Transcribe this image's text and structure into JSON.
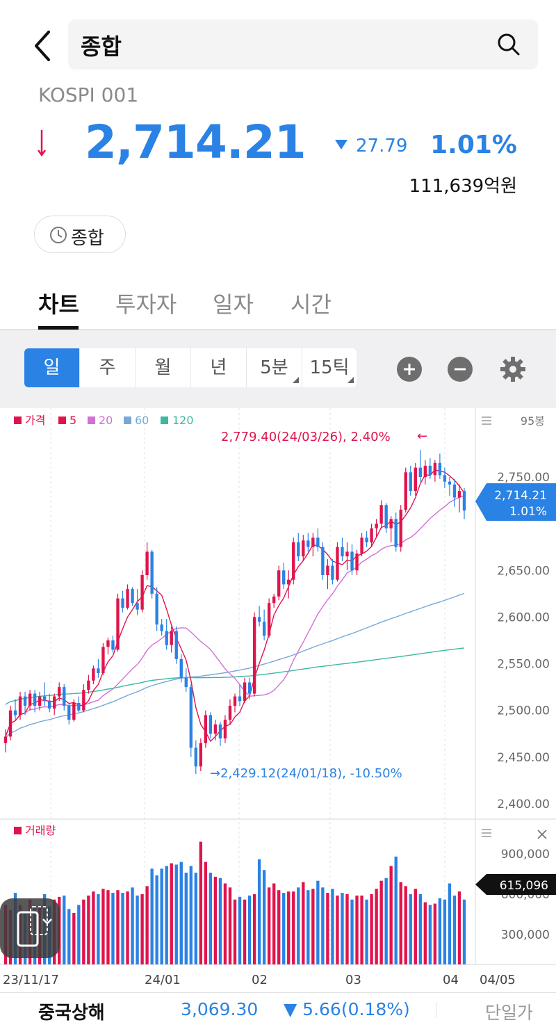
{
  "header": {
    "search_text": "종합"
  },
  "index": {
    "code": "KOSPI 001",
    "price": "2,714.21",
    "change": "27.79",
    "change_pct": "1.01%",
    "trade_amount": "111,639억원",
    "market_chip": "종합"
  },
  "tabs": [
    {
      "label": "차트",
      "active": true
    },
    {
      "label": "투자자",
      "active": false
    },
    {
      "label": "일자",
      "active": false
    },
    {
      "label": "시간",
      "active": false
    }
  ],
  "periods": [
    {
      "label": "일",
      "active": true
    },
    {
      "label": "주"
    },
    {
      "label": "월"
    },
    {
      "label": "년"
    },
    {
      "label": "5분",
      "has_menu": true
    },
    {
      "label": "15틱",
      "has_menu": true
    }
  ],
  "colors": {
    "up": "#e0144c",
    "down": "#2a82e4",
    "ma5": "#e0144c",
    "ma20": "#d070d8",
    "ma60": "#78a8d6",
    "ma120": "#3cb8a0"
  },
  "chart_data": {
    "type": "candlestick",
    "legend": [
      "가격",
      "5",
      "20",
      "60",
      "120"
    ],
    "candle_count_label": "95봉",
    "price_axis": {
      "ticks": [
        "2,750.00",
        "2,650.00",
        "2,600.00",
        "2,550.00",
        "2,500.00",
        "2,450.00",
        "2,400.00"
      ],
      "range": [
        2400,
        2780
      ]
    },
    "current": {
      "price": "2,714.21",
      "pct": "1.01%"
    },
    "high_annotation": "2,779.40(24/03/26), 2.40%",
    "low_annotation": "2,429.12(24/01/18), -10.50%",
    "x_labels": [
      "23/11/17",
      "24/01",
      "02",
      "03",
      "04",
      "04/05"
    ],
    "volume_panel": {
      "label": "거래량",
      "ticks": [
        "900,000",
        "600,000",
        "300,000"
      ],
      "current": "615,096"
    },
    "candles": [
      [
        2465,
        2480,
        2455,
        2472
      ],
      [
        2472,
        2505,
        2468,
        2500
      ],
      [
        2500,
        2512,
        2490,
        2495
      ],
      [
        2495,
        2520,
        2490,
        2515
      ],
      [
        2515,
        2520,
        2495,
        2505
      ],
      [
        2505,
        2522,
        2500,
        2518
      ],
      [
        2518,
        2522,
        2498,
        2505
      ],
      [
        2505,
        2520,
        2500,
        2515
      ],
      [
        2515,
        2530,
        2505,
        2510
      ],
      [
        2510,
        2518,
        2498,
        2502
      ],
      [
        2502,
        2518,
        2495,
        2515
      ],
      [
        2515,
        2530,
        2510,
        2525
      ],
      [
        2525,
        2528,
        2500,
        2505
      ],
      [
        2505,
        2508,
        2485,
        2490
      ],
      [
        2490,
        2512,
        2488,
        2508
      ],
      [
        2508,
        2515,
        2498,
        2500
      ],
      [
        2500,
        2528,
        2498,
        2522
      ],
      [
        2522,
        2538,
        2518,
        2532
      ],
      [
        2532,
        2548,
        2528,
        2545
      ],
      [
        2545,
        2555,
        2535,
        2540
      ],
      [
        2540,
        2572,
        2538,
        2568
      ],
      [
        2568,
        2578,
        2560,
        2575
      ],
      [
        2575,
        2580,
        2562,
        2565
      ],
      [
        2565,
        2625,
        2563,
        2620
      ],
      [
        2620,
        2628,
        2605,
        2610
      ],
      [
        2610,
        2635,
        2608,
        2630
      ],
      [
        2630,
        2632,
        2612,
        2615
      ],
      [
        2615,
        2630,
        2602,
        2608
      ],
      [
        2608,
        2650,
        2605,
        2645
      ],
      [
        2645,
        2680,
        2640,
        2670
      ],
      [
        2670,
        2672,
        2620,
        2625
      ],
      [
        2625,
        2632,
        2585,
        2592
      ],
      [
        2592,
        2598,
        2580,
        2585
      ],
      [
        2585,
        2598,
        2565,
        2570
      ],
      [
        2570,
        2590,
        2562,
        2585
      ],
      [
        2585,
        2590,
        2550,
        2555
      ],
      [
        2555,
        2560,
        2530,
        2535
      ],
      [
        2535,
        2545,
        2520,
        2525
      ],
      [
        2525,
        2528,
        2450,
        2460
      ],
      [
        2460,
        2468,
        2432,
        2440
      ],
      [
        2440,
        2470,
        2435,
        2465
      ],
      [
        2465,
        2500,
        2460,
        2495
      ],
      [
        2495,
        2498,
        2470,
        2475
      ],
      [
        2475,
        2490,
        2468,
        2485
      ],
      [
        2485,
        2488,
        2462,
        2470
      ],
      [
        2470,
        2495,
        2465,
        2490
      ],
      [
        2490,
        2512,
        2485,
        2505
      ],
      [
        2505,
        2518,
        2498,
        2515
      ],
      [
        2515,
        2528,
        2505,
        2510
      ],
      [
        2510,
        2535,
        2508,
        2530
      ],
      [
        2530,
        2535,
        2512,
        2518
      ],
      [
        2518,
        2605,
        2515,
        2600
      ],
      [
        2600,
        2612,
        2590,
        2595
      ],
      [
        2595,
        2608,
        2575,
        2580
      ],
      [
        2580,
        2620,
        2578,
        2615
      ],
      [
        2615,
        2625,
        2610,
        2622
      ],
      [
        2622,
        2655,
        2618,
        2650
      ],
      [
        2650,
        2658,
        2630,
        2635
      ],
      [
        2635,
        2650,
        2620,
        2640
      ],
      [
        2640,
        2685,
        2635,
        2680
      ],
      [
        2680,
        2690,
        2660,
        2665
      ],
      [
        2665,
        2688,
        2660,
        2682
      ],
      [
        2682,
        2690,
        2670,
        2675
      ],
      [
        2675,
        2690,
        2665,
        2685
      ],
      [
        2685,
        2695,
        2670,
        2675
      ],
      [
        2675,
        2680,
        2640,
        2645
      ],
      [
        2645,
        2662,
        2630,
        2655
      ],
      [
        2655,
        2662,
        2635,
        2640
      ],
      [
        2640,
        2680,
        2638,
        2675
      ],
      [
        2675,
        2685,
        2660,
        2665
      ],
      [
        2665,
        2680,
        2650,
        2670
      ],
      [
        2670,
        2678,
        2645,
        2650
      ],
      [
        2650,
        2672,
        2645,
        2668
      ],
      [
        2668,
        2690,
        2665,
        2685
      ],
      [
        2685,
        2692,
        2675,
        2680
      ],
      [
        2680,
        2700,
        2675,
        2695
      ],
      [
        2695,
        2705,
        2685,
        2700
      ],
      [
        2700,
        2725,
        2695,
        2720
      ],
      [
        2720,
        2722,
        2690,
        2695
      ],
      [
        2695,
        2708,
        2680,
        2705
      ],
      [
        2705,
        2712,
        2670,
        2675
      ],
      [
        2675,
        2720,
        2670,
        2715
      ],
      [
        2715,
        2760,
        2712,
        2755
      ],
      [
        2755,
        2762,
        2730,
        2735
      ],
      [
        2735,
        2765,
        2730,
        2760
      ],
      [
        2760,
        2779,
        2745,
        2750
      ],
      [
        2750,
        2768,
        2742,
        2762
      ],
      [
        2762,
        2770,
        2748,
        2752
      ],
      [
        2752,
        2768,
        2745,
        2765
      ],
      [
        2765,
        2775,
        2748,
        2752
      ],
      [
        2752,
        2760,
        2738,
        2745
      ],
      [
        2745,
        2750,
        2730,
        2742
      ],
      [
        2742,
        2748,
        2718,
        2728
      ],
      [
        2728,
        2742,
        2712,
        2735
      ],
      [
        2735,
        2738,
        2705,
        2714
      ]
    ],
    "volumes": [
      520,
      480,
      610,
      520,
      470,
      560,
      500,
      510,
      600,
      510,
      560,
      580,
      590,
      490,
      460,
      520,
      560,
      590,
      620,
      600,
      640,
      630,
      610,
      630,
      610,
      620,
      650,
      590,
      600,
      660,
      790,
      740,
      790,
      810,
      830,
      820,
      840,
      760,
      810,
      760,
      990,
      840,
      760,
      730,
      720,
      680,
      650,
      560,
      580,
      560,
      590,
      600,
      860,
      780,
      650,
      680,
      630,
      610,
      620,
      620,
      650,
      690,
      630,
      640,
      700,
      650,
      610,
      640,
      590,
      610,
      600,
      560,
      590,
      590,
      560,
      600,
      640,
      700,
      720,
      810,
      880,
      690,
      660,
      600,
      640,
      600,
      540,
      520,
      530,
      570,
      560,
      680,
      590,
      620,
      560
    ]
  }
}
